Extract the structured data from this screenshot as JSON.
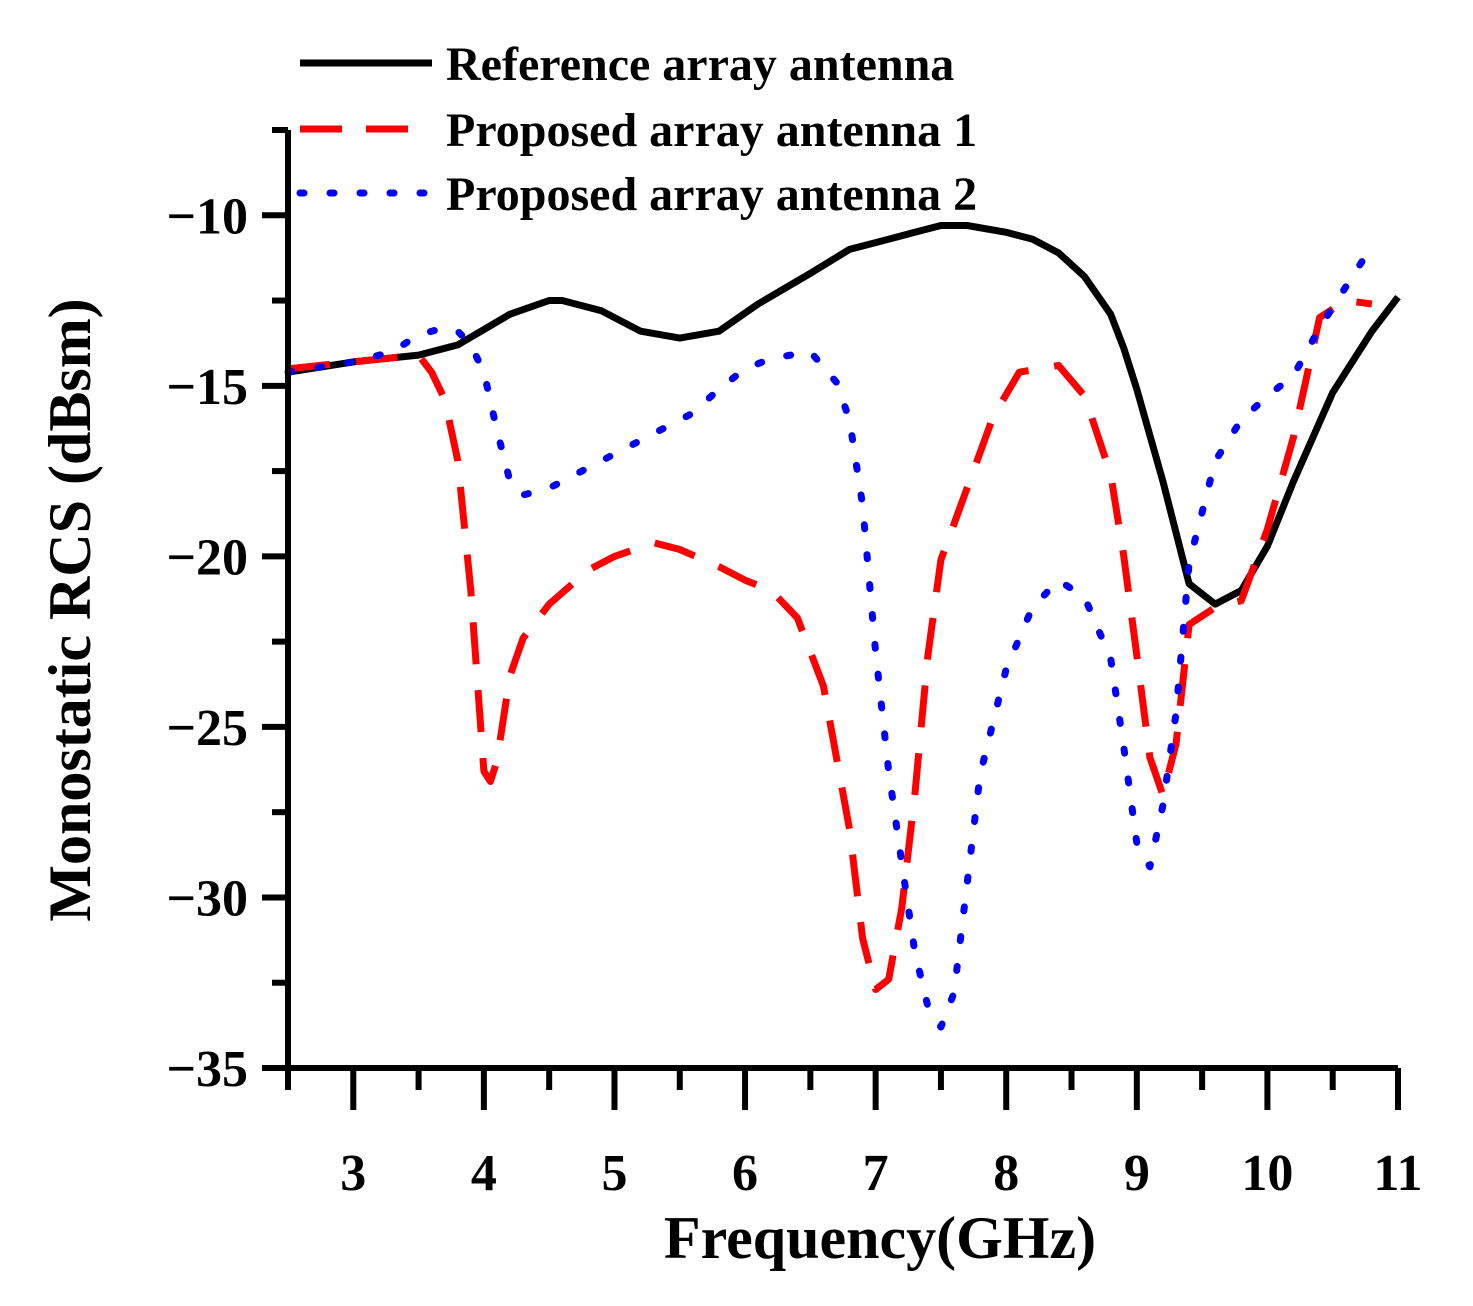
{
  "chart_data": {
    "type": "line",
    "title": "",
    "xlabel": "Frequency(GHz)",
    "ylabel": "Monostatic RCS (dBsm)",
    "xlim": [
      2.5,
      11
    ],
    "ylim": [
      -35,
      -7.5
    ],
    "x_major_ticks": [
      3,
      4,
      5,
      6,
      7,
      8,
      9,
      10,
      11
    ],
    "x_tick_labels": [
      "3",
      "4",
      "5",
      "6",
      "7",
      "8",
      "9",
      "10",
      "11"
    ],
    "x_minor_ticks": [
      2.5,
      3.5,
      4.5,
      5.5,
      6.5,
      7.5,
      8.5,
      9.5,
      10.5
    ],
    "y_major_ticks": [
      -35,
      -30,
      -25,
      -20,
      -15,
      -10
    ],
    "y_tick_labels": [
      "−35",
      "−30",
      "−25",
      "−20",
      "−15",
      "−10"
    ],
    "y_minor_ticks": [
      -32.5,
      -27.5,
      -22.5,
      -17.5,
      -12.5,
      -7.5
    ],
    "grid": false,
    "legend_position": "top",
    "series": [
      {
        "name": "Reference array antenna",
        "color": "#000000",
        "dash": "solid",
        "x": [
          2.5,
          3.0,
          3.5,
          3.8,
          4.2,
          4.5,
          4.6,
          4.9,
          5.2,
          5.5,
          5.8,
          6.1,
          6.5,
          6.8,
          7.0,
          7.3,
          7.5,
          7.7,
          8.0,
          8.2,
          8.4,
          8.6,
          8.8,
          8.9,
          9.0,
          9.2,
          9.4,
          9.6,
          9.8,
          10.0,
          10.2,
          10.5,
          10.8,
          11.0
        ],
        "y": [
          -14.6,
          -14.3,
          -14.1,
          -13.8,
          -12.9,
          -12.5,
          -12.5,
          -12.8,
          -13.4,
          -13.6,
          -13.4,
          -12.6,
          -11.7,
          -11.0,
          -10.8,
          -10.5,
          -10.3,
          -10.3,
          -10.5,
          -10.7,
          -11.1,
          -11.8,
          -12.9,
          -13.9,
          -15.1,
          -17.8,
          -20.8,
          -21.4,
          -21.0,
          -19.7,
          -17.8,
          -15.2,
          -13.4,
          -12.4
        ]
      },
      {
        "name": "Proposed array antenna 1",
        "color": "#ff0000",
        "dash": "dashed",
        "x": [
          2.5,
          3.0,
          3.5,
          3.6,
          3.7,
          3.8,
          3.9,
          4.0,
          4.05,
          4.1,
          4.2,
          4.3,
          4.5,
          4.8,
          5.0,
          5.3,
          5.5,
          5.8,
          6.0,
          6.2,
          6.4,
          6.6,
          6.8,
          6.9,
          7.0,
          7.1,
          7.2,
          7.3,
          7.4,
          7.5,
          7.7,
          7.9,
          8.1,
          8.4,
          8.6,
          8.8,
          8.9,
          9.0,
          9.1,
          9.2,
          9.3,
          9.4,
          9.6,
          9.8,
          10.0,
          10.2,
          10.4,
          10.6,
          10.8
        ],
        "y": [
          -14.5,
          -14.3,
          -14.1,
          -14.6,
          -15.4,
          -17.2,
          -21.0,
          -26.3,
          -26.6,
          -26.0,
          -23.5,
          -22.4,
          -21.4,
          -20.4,
          -20.0,
          -19.6,
          -19.8,
          -20.3,
          -20.7,
          -21.0,
          -21.8,
          -23.8,
          -28.0,
          -31.2,
          -32.7,
          -32.4,
          -30.3,
          -27.0,
          -22.9,
          -20.1,
          -18.0,
          -15.9,
          -14.6,
          -14.4,
          -15.3,
          -17.6,
          -20.0,
          -22.9,
          -25.9,
          -27.0,
          -25.5,
          -22.0,
          -21.5,
          -21.3,
          -19.2,
          -16.5,
          -13.0,
          -12.5,
          -12.6
        ]
      },
      {
        "name": "Proposed array antenna 2",
        "color": "#0000ff",
        "dash": "dotted",
        "x": [
          2.5,
          3.0,
          3.3,
          3.5,
          3.7,
          3.8,
          3.9,
          4.0,
          4.1,
          4.2,
          4.3,
          4.5,
          4.7,
          5.0,
          5.3,
          5.6,
          5.8,
          6.0,
          6.2,
          6.5,
          6.7,
          6.8,
          6.9,
          7.0,
          7.1,
          7.2,
          7.3,
          7.4,
          7.5,
          7.6,
          7.7,
          7.8,
          8.0,
          8.2,
          8.4,
          8.6,
          8.8,
          8.9,
          9.0,
          9.1,
          9.2,
          9.3,
          9.4,
          9.6,
          9.8,
          10.0,
          10.2,
          10.4,
          10.6,
          10.8
        ],
        "y": [
          -14.6,
          -14.3,
          -14.0,
          -13.5,
          -13.3,
          -13.4,
          -13.8,
          -14.6,
          -16.3,
          -17.8,
          -18.2,
          -18.0,
          -17.6,
          -17.0,
          -16.4,
          -15.8,
          -15.1,
          -14.5,
          -14.2,
          -14.0,
          -14.9,
          -16.0,
          -18.5,
          -22.8,
          -26.3,
          -29.0,
          -31.6,
          -33.2,
          -33.8,
          -32.8,
          -29.6,
          -26.4,
          -23.3,
          -21.5,
          -20.7,
          -21.2,
          -23.0,
          -25.6,
          -28.4,
          -29.1,
          -27.3,
          -24.6,
          -20.2,
          -17.2,
          -16.0,
          -15.3,
          -14.7,
          -13.3,
          -12.1,
          -10.9
        ]
      }
    ]
  }
}
